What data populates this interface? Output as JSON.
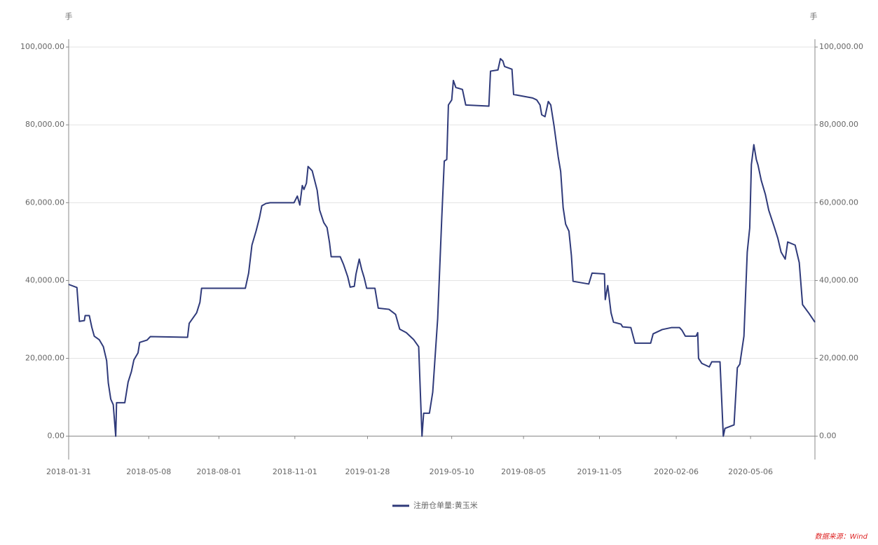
{
  "chart_data": {
    "type": "line",
    "y_unit": "手",
    "y2_unit": "手",
    "source": "数据来源：Wind",
    "x": [
      "2018-01-31",
      "2018-02-10",
      "2018-02-13",
      "2018-02-19",
      "2018-02-20",
      "2018-02-25",
      "2018-02-28",
      "2018-03-03",
      "2018-03-09",
      "2018-03-14",
      "2018-03-18",
      "2018-03-20",
      "2018-03-23",
      "2018-03-26",
      "2018-03-29",
      "2018-03-30",
      "2018-04-09",
      "2018-04-13",
      "2018-04-17",
      "2018-04-20",
      "2018-04-25",
      "2018-04-27",
      "2018-05-06",
      "2018-05-10",
      "2018-06-24",
      "2018-06-26",
      "2018-07-05",
      "2018-07-09",
      "2018-07-11",
      "2018-09-02",
      "2018-09-06",
      "2018-09-10",
      "2018-09-15",
      "2018-09-19",
      "2018-09-22",
      "2018-09-27",
      "2018-10-02",
      "2018-10-31",
      "2018-11-04",
      "2018-11-07",
      "2018-11-10",
      "2018-11-12",
      "2018-11-15",
      "2018-11-17",
      "2018-11-22",
      "2018-11-25",
      "2018-11-28",
      "2018-12-01",
      "2018-12-06",
      "2018-12-10",
      "2018-12-13",
      "2018-12-15",
      "2018-12-26",
      "2018-12-30",
      "2019-01-04",
      "2019-01-07",
      "2019-01-12",
      "2019-01-14",
      "2019-01-18",
      "2019-01-21",
      "2019-01-24",
      "2019-01-27",
      "2019-02-06",
      "2019-02-10",
      "2019-02-23",
      "2019-03-03",
      "2019-03-08",
      "2019-03-16",
      "2019-03-25",
      "2019-03-31",
      "2019-04-02",
      "2019-04-04",
      "2019-04-06",
      "2019-04-13",
      "2019-04-17",
      "2019-04-23",
      "2019-04-28",
      "2019-05-01",
      "2019-05-04",
      "2019-05-06",
      "2019-05-10",
      "2019-05-12",
      "2019-05-15",
      "2019-05-23",
      "2019-05-27",
      "2019-06-24",
      "2019-06-26",
      "2019-07-05",
      "2019-07-08",
      "2019-07-11",
      "2019-07-13",
      "2019-07-22",
      "2019-07-24",
      "2019-08-16",
      "2019-08-21",
      "2019-08-25",
      "2019-08-27",
      "2019-08-31",
      "2019-09-04",
      "2019-09-07",
      "2019-09-11",
      "2019-09-16",
      "2019-09-19",
      "2019-09-22",
      "2019-09-25",
      "2019-09-29",
      "2019-10-02",
      "2019-10-04",
      "2019-10-23",
      "2019-10-27",
      "2019-11-11",
      "2019-11-12",
      "2019-11-15",
      "2019-11-19",
      "2019-11-22",
      "2019-12-01",
      "2019-12-03",
      "2019-12-13",
      "2019-12-18",
      "2020-01-06",
      "2020-01-09",
      "2020-01-20",
      "2020-01-31",
      "2020-02-10",
      "2020-02-13",
      "2020-02-17",
      "2020-03-01",
      "2020-03-03",
      "2020-03-04",
      "2020-03-08",
      "2020-03-17",
      "2020-03-20",
      "2020-03-30",
      "2020-04-03",
      "2020-04-05",
      "2020-04-11",
      "2020-04-16",
      "2020-04-20",
      "2020-04-23",
      "2020-04-28",
      "2020-05-02",
      "2020-05-05",
      "2020-05-07",
      "2020-05-10",
      "2020-05-13",
      "2020-05-15",
      "2020-05-19",
      "2020-05-24",
      "2020-05-28",
      "2020-06-04",
      "2020-06-08",
      "2020-06-12",
      "2020-06-17",
      "2020-06-20",
      "2020-06-29",
      "2020-07-04",
      "2020-07-08",
      "2020-07-16",
      "2020-07-23"
    ],
    "series": [
      {
        "name": "注册仓单量:黄玉米",
        "color": "#2f3a7a",
        "values": [
          39000,
          38200,
          29500,
          29700,
          31000,
          31000,
          28000,
          25700,
          24800,
          23000,
          19400,
          13700,
          9500,
          8100,
          0,
          8600,
          8600,
          13900,
          16600,
          19600,
          21400,
          24100,
          24700,
          25600,
          25400,
          29000,
          31700,
          34400,
          38000,
          38000,
          41900,
          49100,
          52700,
          56000,
          59200,
          59800,
          60000,
          60000,
          61700,
          59400,
          64400,
          63400,
          65000,
          69300,
          68200,
          65700,
          63200,
          58100,
          54900,
          53600,
          49700,
          46100,
          46100,
          44100,
          41000,
          38300,
          38500,
          41600,
          45500,
          42800,
          40700,
          38000,
          38000,
          32900,
          32600,
          31300,
          27500,
          26600,
          24800,
          23000,
          11300,
          0,
          5900,
          5900,
          11300,
          30200,
          56300,
          70700,
          71100,
          85100,
          86400,
          91400,
          89600,
          89100,
          85100,
          84800,
          93800,
          94100,
          97000,
          96400,
          95000,
          94300,
          87800,
          86900,
          86400,
          85100,
          82600,
          82100,
          86000,
          85100,
          79700,
          71800,
          68000,
          58700,
          54500,
          52700,
          46400,
          39800,
          39100,
          41900,
          41700,
          35100,
          38700,
          31700,
          29300,
          28800,
          28100,
          27900,
          23900,
          23900,
          26300,
          27400,
          27900,
          27900,
          27200,
          25700,
          25700,
          26600,
          20000,
          18700,
          17800,
          19100,
          19100,
          0,
          2000,
          2500,
          2900,
          17600,
          18500,
          25700,
          47300,
          53500,
          69800,
          74900,
          71100,
          69700,
          65700,
          62100,
          58100,
          53600,
          50900,
          47300,
          45500,
          49900,
          49100,
          44600,
          33800,
          31500,
          29300
        ]
      }
    ],
    "xlim": [
      "2018-01-31",
      "2020-07-23"
    ],
    "xticks": [
      "2018-01-31",
      "2018-05-08",
      "2018-08-01",
      "2018-11-01",
      "2019-01-28",
      "2019-05-10",
      "2019-08-05",
      "2019-11-05",
      "2020-02-06",
      "2020-05-06"
    ],
    "ylim": [
      -6000,
      102000
    ],
    "yticks": [
      {
        "value": 0,
        "label": "0.00"
      },
      {
        "value": 20000,
        "label": "20,000.00"
      },
      {
        "value": 40000,
        "label": "40,000.00"
      },
      {
        "value": 60000,
        "label": "60,000.00"
      },
      {
        "value": 80000,
        "label": "80,000.00"
      },
      {
        "value": 100000,
        "label": "100,000.00"
      }
    ],
    "y2lim": [
      -6000,
      102000
    ],
    "y2ticks": [
      {
        "value": 0,
        "label": "0.00"
      },
      {
        "value": 20000,
        "label": "20,000.00"
      },
      {
        "value": 40000,
        "label": "40,000.00"
      },
      {
        "value": 60000,
        "label": "60,000.00"
      },
      {
        "value": 80000,
        "label": "80,000.00"
      },
      {
        "value": 100000,
        "label": "100,000.00"
      }
    ],
    "grid": true
  }
}
